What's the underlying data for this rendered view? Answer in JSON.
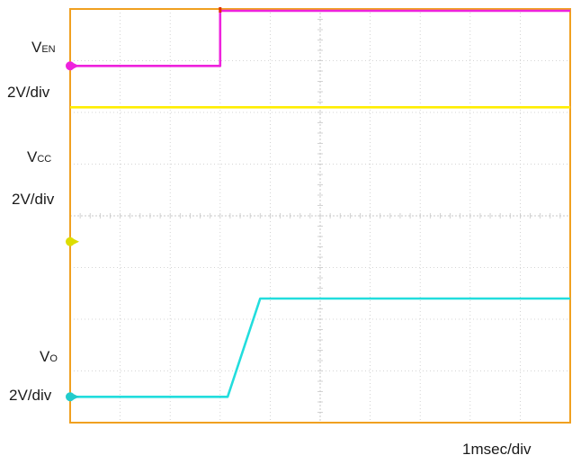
{
  "chart_data": {
    "type": "line",
    "title": "",
    "xlabel": "1msec/div",
    "ylabel": "",
    "grid": true,
    "x_divisions": 10,
    "y_divisions": 8,
    "xlim": [
      0,
      10
    ],
    "ylim": [
      0,
      8
    ],
    "colors": {
      "frame": "#f0a020",
      "grid": "#c8c8c8",
      "background": "#ffffff"
    },
    "series": [
      {
        "name": "EN",
        "color": "#ee22dd",
        "marker": "#ee22dd",
        "scale": "2V/div",
        "ground_div": 6.9,
        "x": [
          0,
          3.0,
          3.0,
          10
        ],
        "y": [
          6.9,
          6.9,
          8.2,
          8.2
        ]
      },
      {
        "name": "CC",
        "color": "#ffee00",
        "marker": "#dddd00",
        "scale": "2V/div",
        "ground_div": 3.5,
        "x": [
          0,
          10
        ],
        "y": [
          6.1,
          6.1
        ]
      },
      {
        "name": "O",
        "color": "#22dddd",
        "marker": "#22cccc",
        "scale": "2V/div",
        "ground_div": 0.5,
        "x": [
          0,
          3.15,
          3.8,
          10
        ],
        "y": [
          0.5,
          0.5,
          2.4,
          2.4
        ]
      }
    ]
  },
  "labels": {
    "en_main": "V",
    "en_sub": "EN",
    "en_scale": "2V/div",
    "cc_main": "V",
    "cc_sub": "CC",
    "cc_scale": "2V/div",
    "o_main": "V",
    "o_sub": "O",
    "o_scale": "2V/div",
    "time_scale": "1msec/div"
  }
}
